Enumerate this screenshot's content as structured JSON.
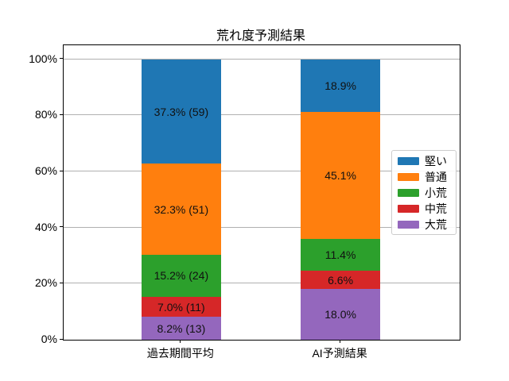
{
  "figure": {
    "background_color": "#ffffff"
  },
  "chart_data": {
    "type": "bar",
    "stacked": true,
    "percent_stacked": true,
    "title": "荒れ度予測結果",
    "categories": [
      "過去期間平均",
      "AI予測結果"
    ],
    "series": [
      {
        "name": "大荒",
        "color": "#9467bd",
        "values": [
          8.2,
          18.0
        ],
        "counts": [
          13,
          null
        ],
        "labels": [
          "8.2% (13)",
          "18.0%"
        ]
      },
      {
        "name": "中荒",
        "color": "#d62728",
        "values": [
          7.0,
          6.6
        ],
        "counts": [
          11,
          null
        ],
        "labels": [
          "7.0% (11)",
          "6.6%"
        ]
      },
      {
        "name": "小荒",
        "color": "#2ca02c",
        "values": [
          15.2,
          11.4
        ],
        "counts": [
          24,
          null
        ],
        "labels": [
          "15.2% (24)",
          "11.4%"
        ]
      },
      {
        "name": "普通",
        "color": "#ff7f0e",
        "values": [
          32.3,
          45.1
        ],
        "counts": [
          51,
          null
        ],
        "labels": [
          "32.3% (51)",
          "45.1%"
        ]
      },
      {
        "name": "堅い",
        "color": "#1f77b4",
        "values": [
          37.3,
          18.9
        ],
        "counts": [
          59,
          null
        ],
        "labels": [
          "37.3% (59)",
          "18.9%"
        ]
      }
    ],
    "y_ticks": [
      {
        "value": 0,
        "label": "0%"
      },
      {
        "value": 20,
        "label": "20%"
      },
      {
        "value": 40,
        "label": "40%"
      },
      {
        "value": 60,
        "label": "60%"
      },
      {
        "value": 80,
        "label": "80%"
      },
      {
        "value": 100,
        "label": "100%"
      }
    ],
    "ylim": [
      0,
      105
    ],
    "xlabel": "",
    "ylabel": "",
    "grid": true,
    "grid_color": "#b0b0b0",
    "legend": {
      "position": "center-right",
      "entries": [
        "堅い",
        "普通",
        "小荒",
        "中荒",
        "大荒"
      ]
    },
    "label_text_color": "#111111"
  }
}
